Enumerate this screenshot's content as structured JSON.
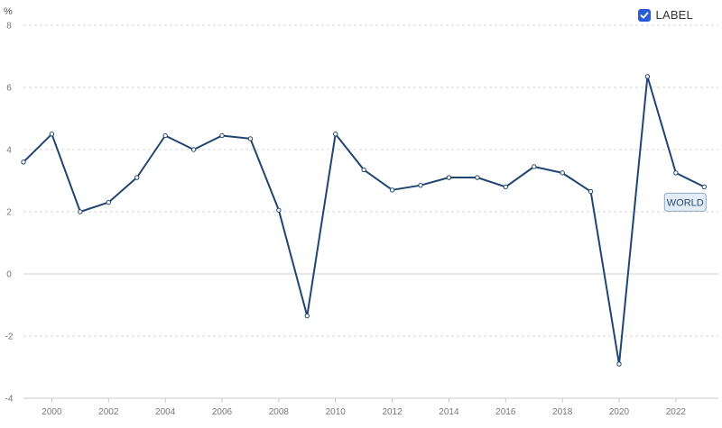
{
  "legend": {
    "label": "LABEL",
    "checked": true
  },
  "colors": {
    "line": "#1f4570",
    "checkbox": "#2a5bd7",
    "grid": "#d6d6d6",
    "zero": "#d0d0d0",
    "tag_bg": "#e3edf7",
    "tag_border": "#90a8c2"
  },
  "chart_data": {
    "type": "line",
    "title": "",
    "xlabel": "",
    "ylabel": "%",
    "ylim": [
      -4,
      8
    ],
    "xlim": [
      1999,
      2023.5
    ],
    "grid": true,
    "legend_position": "top-right",
    "y_ticks": [
      "-4",
      "-2",
      "0",
      "2",
      "4",
      "6",
      "8"
    ],
    "x_ticks": [
      "2000",
      "2002",
      "2004",
      "2006",
      "2008",
      "2010",
      "2012",
      "2014",
      "2016",
      "2018",
      "2020",
      "2022"
    ],
    "series": [
      {
        "name": "WORLD",
        "x": [
          1999,
          2000,
          2001,
          2002,
          2003,
          2004,
          2005,
          2006,
          2007,
          2008,
          2009,
          2010,
          2011,
          2012,
          2013,
          2014,
          2015,
          2016,
          2017,
          2018,
          2019,
          2020,
          2021,
          2022,
          2023
        ],
        "values": [
          3.6,
          4.5,
          2.0,
          2.3,
          3.1,
          4.45,
          4.0,
          4.45,
          4.35,
          2.05,
          -1.35,
          4.5,
          3.35,
          2.7,
          2.85,
          3.1,
          3.1,
          2.8,
          3.45,
          3.25,
          2.65,
          -2.9,
          6.35,
          3.25,
          2.8
        ]
      }
    ]
  }
}
